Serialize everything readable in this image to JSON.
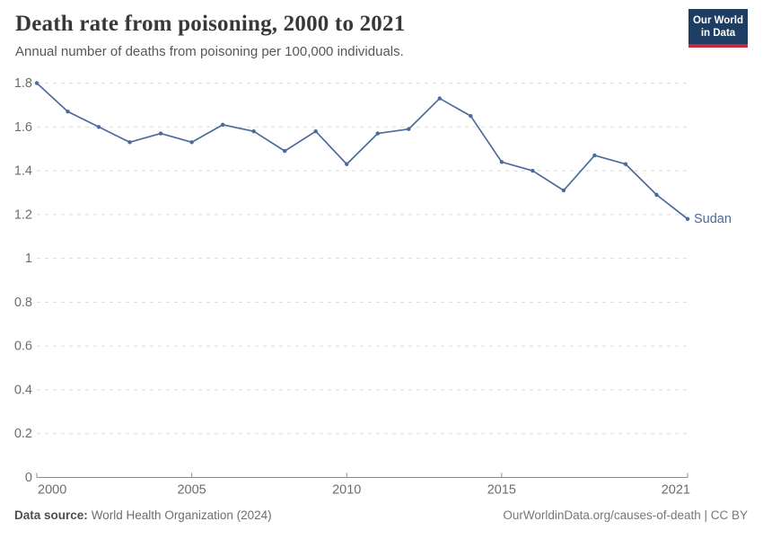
{
  "header": {
    "logo": {
      "line1": "Our World",
      "line2": "in Data",
      "bg_color": "#1d3d63",
      "accent_color": "#c52b3d"
    }
  },
  "chart_data": {
    "type": "line",
    "title": "Death rate from poisoning, 2000 to 2021",
    "subtitle": "Annual number of deaths from poisoning per 100,000 individuals.",
    "xlabel": "",
    "ylabel": "",
    "xlim": [
      2000,
      2021
    ],
    "ylim": [
      0,
      1.8
    ],
    "grid": "horizontal-dashed",
    "legend_position": "end-of-line-label",
    "x": [
      2000,
      2001,
      2002,
      2003,
      2004,
      2005,
      2006,
      2007,
      2008,
      2009,
      2010,
      2011,
      2012,
      2013,
      2014,
      2015,
      2016,
      2017,
      2018,
      2019,
      2020,
      2021
    ],
    "series": [
      {
        "name": "Sudan",
        "color": "#4c6a9c",
        "values": [
          1.8,
          1.67,
          1.6,
          1.53,
          1.57,
          1.53,
          1.61,
          1.58,
          1.49,
          1.58,
          1.43,
          1.57,
          1.59,
          1.73,
          1.65,
          1.44,
          1.4,
          1.31,
          1.47,
          1.43,
          1.29,
          1.18
        ]
      }
    ],
    "x_ticks": [
      {
        "value": 2000,
        "label": "2000"
      },
      {
        "value": 2005,
        "label": "2005"
      },
      {
        "value": 2010,
        "label": "2010"
      },
      {
        "value": 2015,
        "label": "2015"
      },
      {
        "value": 2021,
        "label": "2021"
      }
    ],
    "y_ticks": [
      {
        "value": 0,
        "label": "0"
      },
      {
        "value": 0.2,
        "label": "0.2"
      },
      {
        "value": 0.4,
        "label": "0.4"
      },
      {
        "value": 0.6,
        "label": "0.6"
      },
      {
        "value": 0.8,
        "label": "0.8"
      },
      {
        "value": 1,
        "label": "1"
      },
      {
        "value": 1.2,
        "label": "1.2"
      },
      {
        "value": 1.4,
        "label": "1.4"
      },
      {
        "value": 1.6,
        "label": "1.6"
      },
      {
        "value": 1.8,
        "label": "1.8"
      }
    ],
    "colors": {
      "grid": "#dadada",
      "axis": "#8c8c8c",
      "tick_label": "#6d6d6d"
    }
  },
  "footer": {
    "datasource_label": "Data source:",
    "datasource_value": "World Health Organization (2024)",
    "credit": "OurWorldinData.org/causes-of-death | CC BY"
  }
}
